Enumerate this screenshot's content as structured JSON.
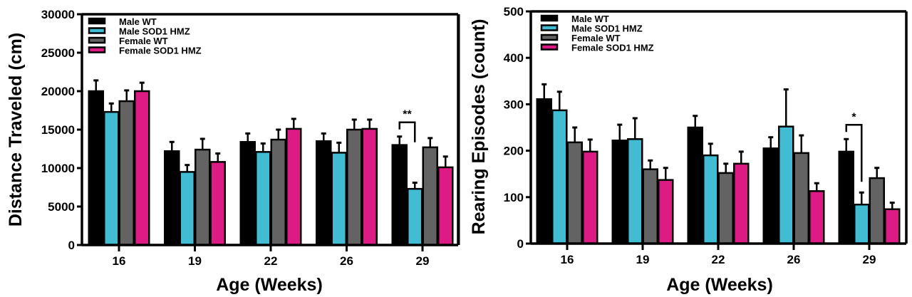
{
  "chart_data": [
    {
      "type": "bar",
      "title": "",
      "xlabel": "Age  (Weeks)",
      "ylabel": "Distance  Traveled  (cm)",
      "categories": [
        "16",
        "19",
        "22",
        "26",
        "29"
      ],
      "ylim": [
        0,
        30000
      ],
      "yticks": [
        0,
        5000,
        10000,
        15000,
        20000,
        25000,
        30000
      ],
      "ytick_labels": [
        "0",
        "5000",
        "10000",
        "15000",
        "20000",
        "25000",
        "30000"
      ],
      "grid": false,
      "legend_position": "top-left",
      "series": [
        {
          "name": "Male WT",
          "color": "#000000",
          "values": [
            20000,
            12200,
            13400,
            13500,
            13000
          ],
          "errors": [
            1400,
            1200,
            1100,
            1000,
            1100
          ]
        },
        {
          "name": "Male SOD1 HMZ",
          "color": "#41bcd3",
          "values": [
            17300,
            9500,
            12100,
            12000,
            7300
          ],
          "errors": [
            1100,
            900,
            1100,
            1300,
            800
          ]
        },
        {
          "name": "Female WT",
          "color": "#636363",
          "values": [
            18700,
            12400,
            13700,
            15000,
            12700
          ],
          "errors": [
            1400,
            1400,
            1300,
            1300,
            1200
          ]
        },
        {
          "name": "Female SOD1 HMZ",
          "color": "#dd1b84",
          "values": [
            20000,
            10800,
            15100,
            15100,
            10100
          ],
          "errors": [
            1100,
            1100,
            1300,
            1200,
            1400
          ]
        }
      ],
      "annotations": [
        {
          "text": "**",
          "category": "29",
          "between": [
            "Male WT",
            "Male SOD1 HMZ"
          ]
        }
      ]
    },
    {
      "type": "bar",
      "title": "",
      "xlabel": "Age  (Weeks)",
      "ylabel": "Rearing  Episodes (count)",
      "categories": [
        "16",
        "19",
        "22",
        "26",
        "29"
      ],
      "ylim": [
        0,
        500
      ],
      "yticks": [
        0,
        100,
        200,
        300,
        400,
        500
      ],
      "ytick_labels": [
        "0",
        "100",
        "200",
        "300",
        "400",
        "500"
      ],
      "grid": false,
      "legend_position": "top-left",
      "series": [
        {
          "name": "Male WT",
          "color": "#000000",
          "values": [
            311,
            222,
            250,
            205,
            198
          ],
          "errors": [
            32,
            34,
            25,
            24,
            27
          ]
        },
        {
          "name": "Male SOD1 HMZ",
          "color": "#41bcd3",
          "values": [
            287,
            225,
            190,
            252,
            84
          ],
          "errors": [
            40,
            45,
            25,
            80,
            26
          ]
        },
        {
          "name": "Female WT",
          "color": "#636363",
          "values": [
            218,
            160,
            152,
            195,
            141
          ],
          "errors": [
            32,
            19,
            20,
            38,
            22
          ]
        },
        {
          "name": "Female SOD1 HMZ",
          "color": "#dd1b84",
          "values": [
            198,
            137,
            172,
            113,
            74
          ],
          "errors": [
            26,
            26,
            26,
            17,
            14
          ]
        }
      ],
      "annotations": [
        {
          "text": "*",
          "category": "29",
          "between": [
            "Male WT",
            "Male SOD1 HMZ"
          ]
        }
      ]
    }
  ]
}
